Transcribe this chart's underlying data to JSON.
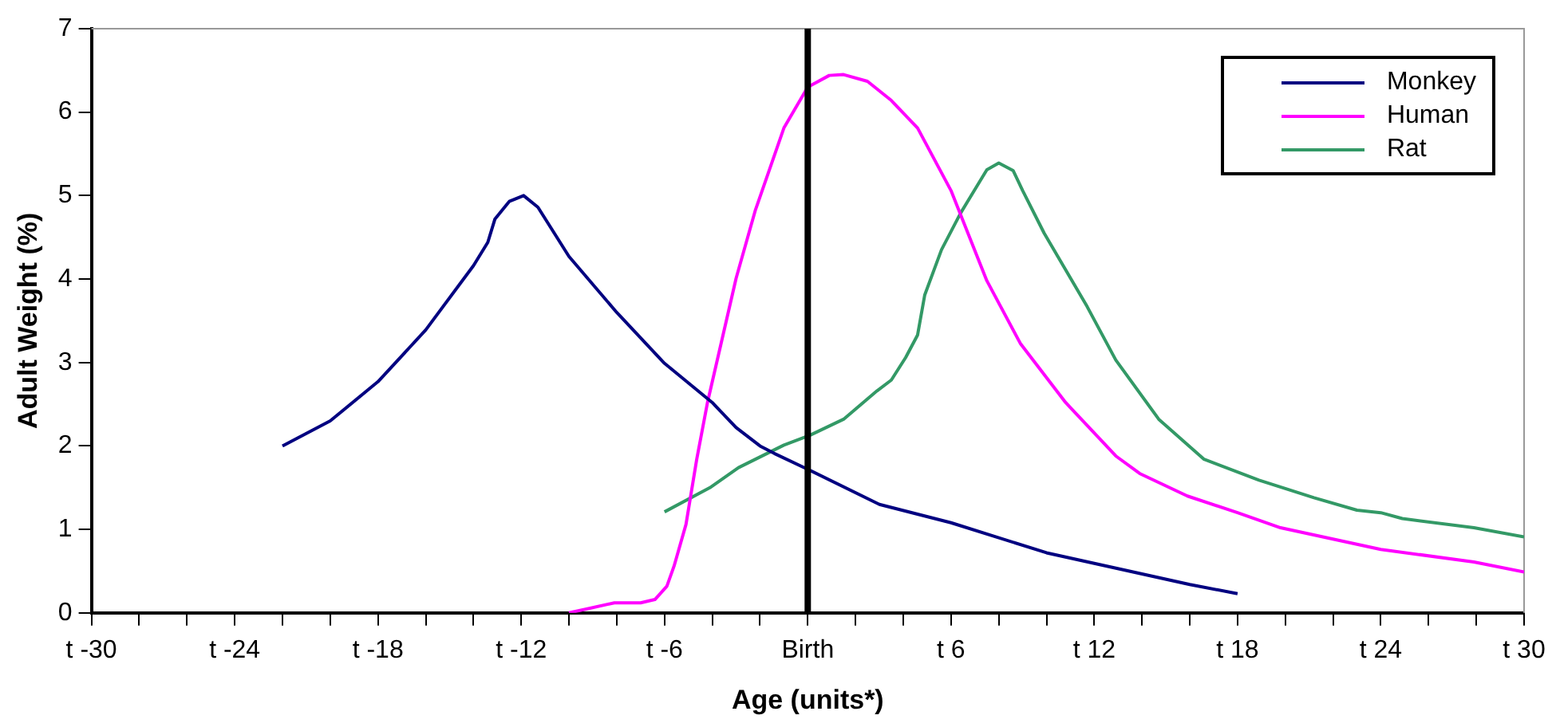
{
  "chart_data": {
    "type": "line",
    "xlabel": "Age (units*)",
    "ylabel": "Adult Weight (%)",
    "xlim": [
      -30,
      30
    ],
    "xticks": [
      {
        "value": -30,
        "label": "t -30"
      },
      {
        "value": -28,
        "label": null
      },
      {
        "value": -26,
        "label": null
      },
      {
        "value": -24,
        "label": "t -24"
      },
      {
        "value": -22,
        "label": null
      },
      {
        "value": -20,
        "label": null
      },
      {
        "value": -18,
        "label": "t -18"
      },
      {
        "value": -16,
        "label": null
      },
      {
        "value": -14,
        "label": null
      },
      {
        "value": -12,
        "label": "t -12"
      },
      {
        "value": -10,
        "label": null
      },
      {
        "value": -8,
        "label": null
      },
      {
        "value": -6,
        "label": "t -6"
      },
      {
        "value": -4,
        "label": null
      },
      {
        "value": -2,
        "label": null
      },
      {
        "value": 0,
        "label": "Birth"
      },
      {
        "value": 2,
        "label": null
      },
      {
        "value": 4,
        "label": null
      },
      {
        "value": 6,
        "label": "t 6"
      },
      {
        "value": 8,
        "label": null
      },
      {
        "value": 10,
        "label": null
      },
      {
        "value": 12,
        "label": "t 12"
      },
      {
        "value": 14,
        "label": null
      },
      {
        "value": 16,
        "label": null
      },
      {
        "value": 18,
        "label": "t 18"
      },
      {
        "value": 20,
        "label": null
      },
      {
        "value": 22,
        "label": null
      },
      {
        "value": 24,
        "label": "t 24"
      },
      {
        "value": 26,
        "label": null
      },
      {
        "value": 28,
        "label": null
      },
      {
        "value": 30,
        "label": "t 30"
      }
    ],
    "ylim": [
      0,
      7
    ],
    "yticks": [
      0,
      1,
      2,
      3,
      4,
      5,
      6,
      7
    ],
    "grid": false,
    "legend": "top right",
    "marker": "none",
    "line_style": "solid",
    "ref_lines": [
      {
        "axis": "x",
        "value": 0,
        "color": "#000000"
      }
    ],
    "series": [
      {
        "name": "Monkey",
        "color": "#000080",
        "x": [
          -22,
          -20,
          -18,
          -16,
          -14,
          -13.4,
          -13.1,
          -12.5,
          -11.9,
          -11.3,
          -10,
          -8,
          -6,
          -4,
          -3,
          -2,
          -1.4,
          0,
          3,
          6,
          10,
          16,
          18
        ],
        "values": [
          2.0,
          2.3,
          2.77,
          3.39,
          4.16,
          4.44,
          4.72,
          4.93,
          5.0,
          4.86,
          4.27,
          3.6,
          2.99,
          2.52,
          2.22,
          2.0,
          1.91,
          1.72,
          1.3,
          1.08,
          0.72,
          0.34,
          0.23
        ]
      },
      {
        "name": "Human",
        "color": "#ff00ff",
        "x": [
          -10,
          -8.1,
          -7,
          -6.4,
          -5.9,
          -5.6,
          -5.1,
          -4.65,
          -4.2,
          -3,
          -2.2,
          -1,
          0,
          0.9,
          1.5,
          2.5,
          3.5,
          4.6,
          6,
          7.5,
          8.9,
          10.8,
          12.9,
          13.9,
          15.9,
          18,
          19.8,
          24,
          27.9,
          30
        ],
        "values": [
          0,
          0.12,
          0.12,
          0.16,
          0.32,
          0.56,
          1.06,
          1.84,
          2.52,
          4.01,
          4.82,
          5.81,
          6.3,
          6.44,
          6.45,
          6.37,
          6.14,
          5.81,
          5.06,
          3.98,
          3.23,
          2.52,
          1.88,
          1.67,
          1.4,
          1.2,
          1.02,
          0.76,
          0.61,
          0.49
        ]
      },
      {
        "name": "Rat",
        "color": "#339966",
        "x": [
          -6,
          -4.1,
          -2.9,
          -1,
          0.1,
          1.5,
          2.9,
          3.5,
          4.1,
          4.6,
          4.9,
          5.6,
          6.4,
          7.5,
          8,
          8.6,
          9,
          9.9,
          11.7,
          12.9,
          14.7,
          16.6,
          18.9,
          20,
          21.2,
          23,
          24,
          24.9,
          27.9,
          30
        ],
        "values": [
          1.21,
          1.5,
          1.74,
          2.01,
          2.13,
          2.32,
          2.66,
          2.79,
          3.06,
          3.33,
          3.81,
          4.35,
          4.79,
          5.31,
          5.39,
          5.3,
          5.06,
          4.55,
          3.67,
          3.03,
          2.32,
          1.84,
          1.59,
          1.49,
          1.38,
          1.23,
          1.2,
          1.13,
          1.02,
          0.91
        ]
      }
    ]
  }
}
